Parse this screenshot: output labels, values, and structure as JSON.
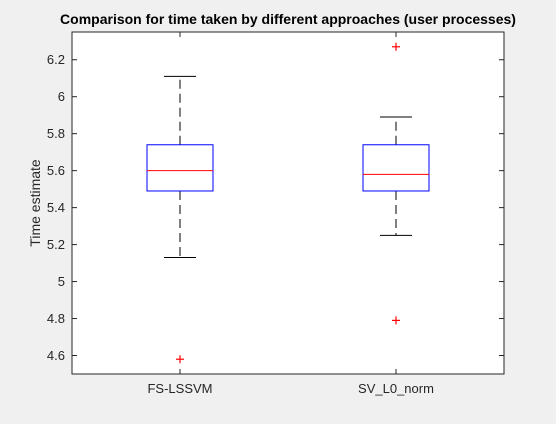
{
  "chart_data": {
    "type": "box",
    "title": "Comparison for time taken by different approaches (user processes)",
    "xlabel": "",
    "ylabel": "Time estimate",
    "ylim": [
      4.5,
      6.35
    ],
    "yticks": [
      4.6,
      4.8,
      5,
      5.2,
      5.4,
      5.6,
      5.8,
      6,
      6.2
    ],
    "ytick_labels": [
      "4.6",
      "4.8",
      "5",
      "5.2",
      "5.4",
      "5.6",
      "5.8",
      "6",
      "6.2"
    ],
    "grid": false,
    "categories": [
      "FS-LSSVM",
      "SV_L0_norm"
    ],
    "boxes": [
      {
        "label": "FS-LSSVM",
        "whisker_low": 5.13,
        "q1": 5.49,
        "median": 5.6,
        "q3": 5.74,
        "whisker_high": 6.11,
        "outliers": [
          4.58
        ]
      },
      {
        "label": "SV_L0_norm",
        "whisker_low": 5.25,
        "q1": 5.49,
        "median": 5.58,
        "q3": 5.74,
        "whisker_high": 5.89,
        "outliers": [
          6.27,
          4.79
        ]
      }
    ],
    "colors": {
      "box": "#0000ff",
      "median": "#ff0000",
      "whisker": "#000000",
      "outlier": "#ff0000",
      "axes_bg": "#ffffff",
      "figure_bg": "#f0f0f0"
    }
  }
}
